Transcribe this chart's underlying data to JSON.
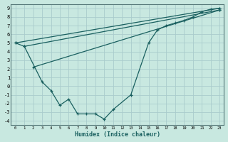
{
  "xlabel": "Humidex (Indice chaleur)",
  "bg_color": "#c8e8e0",
  "grid_color": "#aacccc",
  "line_color": "#1a6060",
  "xlim": [
    -0.5,
    23.5
  ],
  "ylim": [
    -4.5,
    9.5
  ],
  "xticks": [
    0,
    1,
    2,
    3,
    4,
    5,
    6,
    7,
    8,
    9,
    10,
    11,
    12,
    13,
    14,
    15,
    16,
    17,
    18,
    19,
    20,
    21,
    22,
    23
  ],
  "yticks": [
    -4,
    -3,
    -2,
    -1,
    0,
    1,
    2,
    3,
    4,
    5,
    6,
    7,
    8,
    9
  ],
  "line1_x": [
    0,
    1,
    3,
    4,
    5,
    6,
    7,
    8,
    9,
    10,
    11,
    13,
    15,
    16,
    17,
    18,
    19,
    20,
    21,
    22,
    23
  ],
  "line1_y": [
    5,
    4.6,
    0.5,
    -0.5,
    -2.2,
    -1.5,
    -3.2,
    -3.2,
    -3.2,
    -3.8,
    -2.7,
    -1.0,
    5.0,
    6.5,
    7.0,
    7.3,
    7.6,
    8.0,
    8.6,
    8.9,
    9.0
  ],
  "line2_x": [
    0,
    23
  ],
  "line2_y": [
    5.0,
    9.0
  ],
  "line3_x": [
    1,
    23
  ],
  "line3_y": [
    4.6,
    8.8
  ],
  "line4_x": [
    2,
    23
  ],
  "line4_y": [
    2.2,
    8.8
  ]
}
